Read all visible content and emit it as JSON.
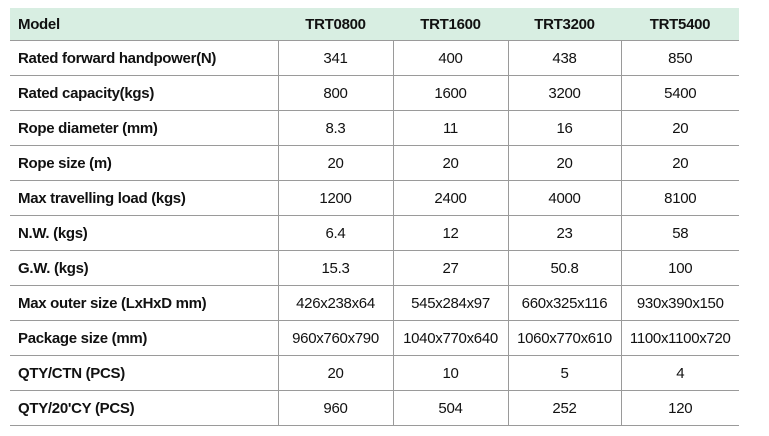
{
  "table": {
    "header": [
      "Model",
      "TRT0800",
      "TRT1600",
      "TRT3200",
      "TRT5400"
    ],
    "rows": [
      [
        "Rated forward handpower(N)",
        "341",
        "400",
        "438",
        "850"
      ],
      [
        "Rated capacity(kgs)",
        "800",
        "1600",
        "3200",
        "5400"
      ],
      [
        "Rope diameter (mm)",
        "8.3",
        "11",
        "16",
        "20"
      ],
      [
        "Rope size (m)",
        "20",
        "20",
        "20",
        "20"
      ],
      [
        "Max travelling load (kgs)",
        "1200",
        "2400",
        "4000",
        "8100"
      ],
      [
        "N.W. (kgs)",
        "6.4",
        "12",
        "23",
        "58"
      ],
      [
        "G.W. (kgs)",
        "15.3",
        "27",
        "50.8",
        "100"
      ],
      [
        "Max outer size (LxHxD mm)",
        "426x238x64",
        "545x284x97",
        "660x325x116",
        "930x390x150"
      ],
      [
        "Package size (mm)",
        "960x760x790",
        "1040x770x640",
        "1060x770x610",
        "1100x1100x720"
      ],
      [
        "QTY/CTN (PCS)",
        "20",
        "10",
        "5",
        "4"
      ],
      [
        "QTY/20'CY (PCS)",
        "960",
        "504",
        "252",
        "120"
      ]
    ]
  }
}
